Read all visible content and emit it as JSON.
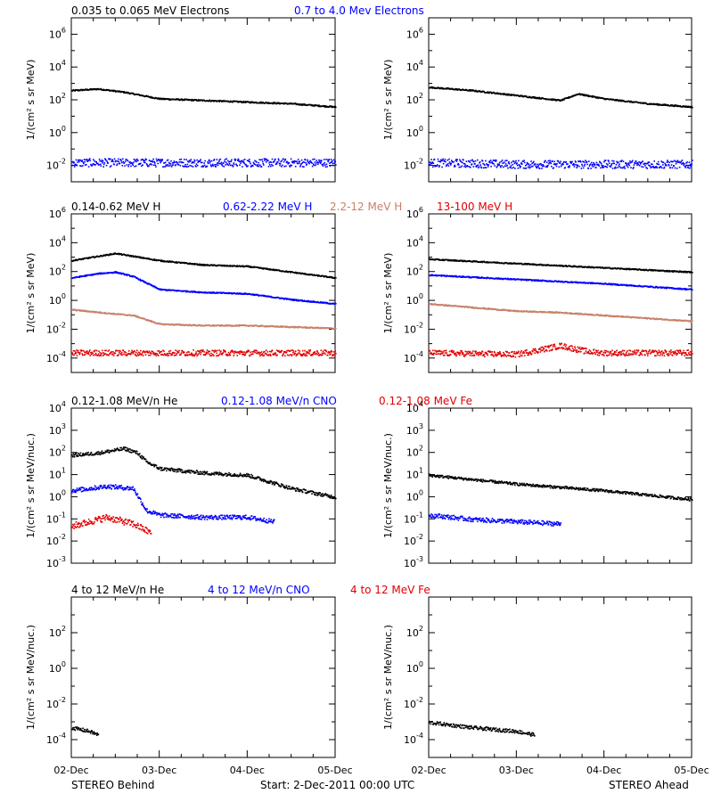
{
  "colors": {
    "black": "#000000",
    "blue": "#0000ff",
    "tan": "#c8806a",
    "red": "#e00000"
  },
  "footer": {
    "left": "STEREO Behind",
    "center": "Start:  2-Dec-2011 00:00 UTC",
    "right": "STEREO Ahead"
  },
  "x_axis": {
    "tick_labels": [
      "02-Dec",
      "03-Dec",
      "04-Dec",
      "05-Dec"
    ],
    "range_days": [
      0,
      3
    ]
  },
  "chart_data": [
    {
      "type": "scatter",
      "row_title": [
        {
          "text": "0.035 to 0.065 MeV Electrons",
          "color": "#000000"
        },
        {
          "text": "0.7 to 4.0 Mev Electrons",
          "color": "#0000ff"
        }
      ],
      "ylabel": "1/(cm² s sr MeV)",
      "yscale": "log",
      "ylim_exp": [
        -3,
        7
      ],
      "ytick_exp": [
        -2,
        0,
        2,
        4,
        6
      ],
      "panels": [
        {
          "spacecraft": "STEREO Behind",
          "series": [
            {
              "color": "#000000",
              "x": [
                0,
                0.3,
                0.6,
                1.0,
                1.5,
                2.0,
                2.5,
                3.0
              ],
              "log10_flux": [
                2.6,
                2.7,
                2.5,
                2.1,
                2.0,
                1.9,
                1.8,
                1.6
              ],
              "scatter": 0.04
            },
            {
              "color": "#0000ff",
              "x": [
                0,
                1.0,
                2.0,
                3.0
              ],
              "log10_flux": [
                -1.8,
                -1.8,
                -1.8,
                -1.8
              ],
              "scatter": 0.25
            }
          ]
        },
        {
          "spacecraft": "STEREO Ahead",
          "series": [
            {
              "color": "#000000",
              "x": [
                0,
                0.5,
                1.0,
                1.5,
                1.7,
                2.0,
                2.5,
                3.0
              ],
              "log10_flux": [
                2.8,
                2.6,
                2.3,
                2.0,
                2.4,
                2.1,
                1.8,
                1.6
              ],
              "scatter": 0.04
            },
            {
              "color": "#0000ff",
              "x": [
                0,
                1.0,
                2.0,
                3.0
              ],
              "log10_flux": [
                -1.8,
                -1.9,
                -1.9,
                -1.9
              ],
              "scatter": 0.25
            }
          ]
        }
      ]
    },
    {
      "type": "scatter",
      "row_title": [
        {
          "text": "0.14-0.62 MeV H",
          "color": "#000000"
        },
        {
          "text": "0.62-2.22 MeV H",
          "color": "#0000ff"
        },
        {
          "text": "2.2-12 MeV H",
          "color": "#c8806a"
        },
        {
          "text": "13-100 MeV H",
          "color": "#e00000"
        }
      ],
      "ylabel": "1/(cm² s sr MeV)",
      "yscale": "log",
      "ylim_exp": [
        -5,
        6
      ],
      "ytick_exp": [
        -4,
        -2,
        0,
        2,
        4,
        6
      ],
      "panels": [
        {
          "spacecraft": "STEREO Behind",
          "series": [
            {
              "color": "#000000",
              "x": [
                0,
                0.3,
                0.5,
                0.7,
                1.0,
                1.5,
                2.0,
                2.5,
                3.0
              ],
              "log10_flux": [
                2.8,
                3.1,
                3.3,
                3.1,
                2.8,
                2.5,
                2.4,
                2.0,
                1.6
              ],
              "scatter": 0.04
            },
            {
              "color": "#0000ff",
              "x": [
                0,
                0.3,
                0.5,
                0.7,
                1.0,
                1.5,
                2.0,
                2.5,
                3.0
              ],
              "log10_flux": [
                1.6,
                1.9,
                2.0,
                1.7,
                0.8,
                0.6,
                0.5,
                0.1,
                -0.2
              ],
              "scatter": 0.04
            },
            {
              "color": "#c8806a",
              "x": [
                0,
                0.5,
                0.7,
                1.0,
                1.5,
                2.0,
                2.5,
                3.0
              ],
              "log10_flux": [
                -0.6,
                -0.9,
                -1.0,
                -1.6,
                -1.7,
                -1.7,
                -1.8,
                -1.9
              ],
              "scatter": 0.04
            },
            {
              "color": "#e00000",
              "x": [
                0,
                1.0,
                2.0,
                3.0
              ],
              "log10_flux": [
                -3.6,
                -3.6,
                -3.6,
                -3.6
              ],
              "scatter": 0.2
            }
          ]
        },
        {
          "spacecraft": "STEREO Ahead",
          "series": [
            {
              "color": "#000000",
              "x": [
                0,
                1.0,
                2.0,
                3.0
              ],
              "log10_flux": [
                2.9,
                2.6,
                2.3,
                2.0
              ],
              "scatter": 0.04
            },
            {
              "color": "#0000ff",
              "x": [
                0,
                1.0,
                2.0,
                3.0
              ],
              "log10_flux": [
                1.8,
                1.5,
                1.2,
                0.8
              ],
              "scatter": 0.04
            },
            {
              "color": "#c8806a",
              "x": [
                0,
                1.0,
                1.5,
                2.0,
                2.5,
                3.0
              ],
              "log10_flux": [
                -0.2,
                -0.7,
                -0.8,
                -1.0,
                -1.2,
                -1.4
              ],
              "scatter": 0.04
            },
            {
              "color": "#e00000",
              "x": [
                0,
                1.0,
                1.5,
                1.8,
                2.0,
                3.0
              ],
              "log10_flux": [
                -3.6,
                -3.7,
                -3.1,
                -3.5,
                -3.6,
                -3.6
              ],
              "scatter": 0.2
            }
          ]
        }
      ]
    },
    {
      "type": "scatter",
      "row_title": [
        {
          "text": "0.12-1.08 MeV/n He",
          "color": "#000000"
        },
        {
          "text": "0.12-1.08 MeV/n CNO",
          "color": "#0000ff"
        },
        {
          "text": "0.12-1.08 MeV Fe",
          "color": "#e00000"
        }
      ],
      "ylabel": "1/(cm² s sr MeV/nuc.)",
      "yscale": "log",
      "ylim_exp": [
        -3,
        4
      ],
      "ytick_exp": [
        -3,
        -2,
        -1,
        0,
        1,
        2,
        3,
        4
      ],
      "panels": [
        {
          "spacecraft": "STEREO Behind",
          "series": [
            {
              "color": "#000000",
              "x": [
                0,
                0.3,
                0.6,
                0.75,
                0.85,
                1.0,
                1.5,
                2.0,
                2.5,
                3.0
              ],
              "log10_flux": [
                1.9,
                2.0,
                2.2,
                2.0,
                1.6,
                1.3,
                1.1,
                1.0,
                0.4,
                0.0
              ],
              "scatter": 0.08
            },
            {
              "color": "#0000ff",
              "x": [
                0,
                0.4,
                0.7,
                0.85,
                1.0,
                1.5,
                2.0,
                2.3
              ],
              "log10_flux": [
                0.3,
                0.5,
                0.4,
                -0.6,
                -0.8,
                -0.9,
                -0.9,
                -1.1
              ],
              "scatter": 0.1
            },
            {
              "color": "#e00000",
              "x": [
                0,
                0.4,
                0.7,
                0.9
              ],
              "log10_flux": [
                -1.3,
                -0.9,
                -1.2,
                -1.6
              ],
              "scatter": 0.15
            }
          ]
        },
        {
          "spacecraft": "STEREO Ahead",
          "series": [
            {
              "color": "#000000",
              "x": [
                0,
                1.0,
                2.0,
                3.0
              ],
              "log10_flux": [
                1.0,
                0.6,
                0.3,
                -0.1
              ],
              "scatter": 0.06
            },
            {
              "color": "#0000ff",
              "x": [
                0,
                0.5,
                1.0,
                1.5
              ],
              "log10_flux": [
                -0.8,
                -1.0,
                -1.1,
                -1.2
              ],
              "scatter": 0.1
            }
          ]
        }
      ]
    },
    {
      "type": "scatter",
      "row_title": [
        {
          "text": "4 to 12 MeV/n He",
          "color": "#000000"
        },
        {
          "text": "4 to 12 MeV/n CNO",
          "color": "#0000ff"
        },
        {
          "text": "4 to 12 MeV Fe",
          "color": "#e00000"
        }
      ],
      "ylabel": "1/(cm² s sr MeV/nuc.)",
      "yscale": "log",
      "ylim_exp": [
        -5,
        4
      ],
      "ytick_exp": [
        -4,
        -2,
        0,
        2
      ],
      "panels": [
        {
          "spacecraft": "STEREO Behind",
          "series": [
            {
              "color": "#000000",
              "x": [
                0,
                0.2,
                0.3
              ],
              "log10_flux": [
                -3.3,
                -3.5,
                -3.7
              ],
              "scatter": 0.1
            }
          ]
        },
        {
          "spacecraft": "STEREO Ahead",
          "series": [
            {
              "color": "#000000",
              "x": [
                0,
                0.5,
                1.0,
                1.2
              ],
              "log10_flux": [
                -3.0,
                -3.3,
                -3.5,
                -3.7
              ],
              "scatter": 0.1
            }
          ]
        }
      ]
    }
  ]
}
